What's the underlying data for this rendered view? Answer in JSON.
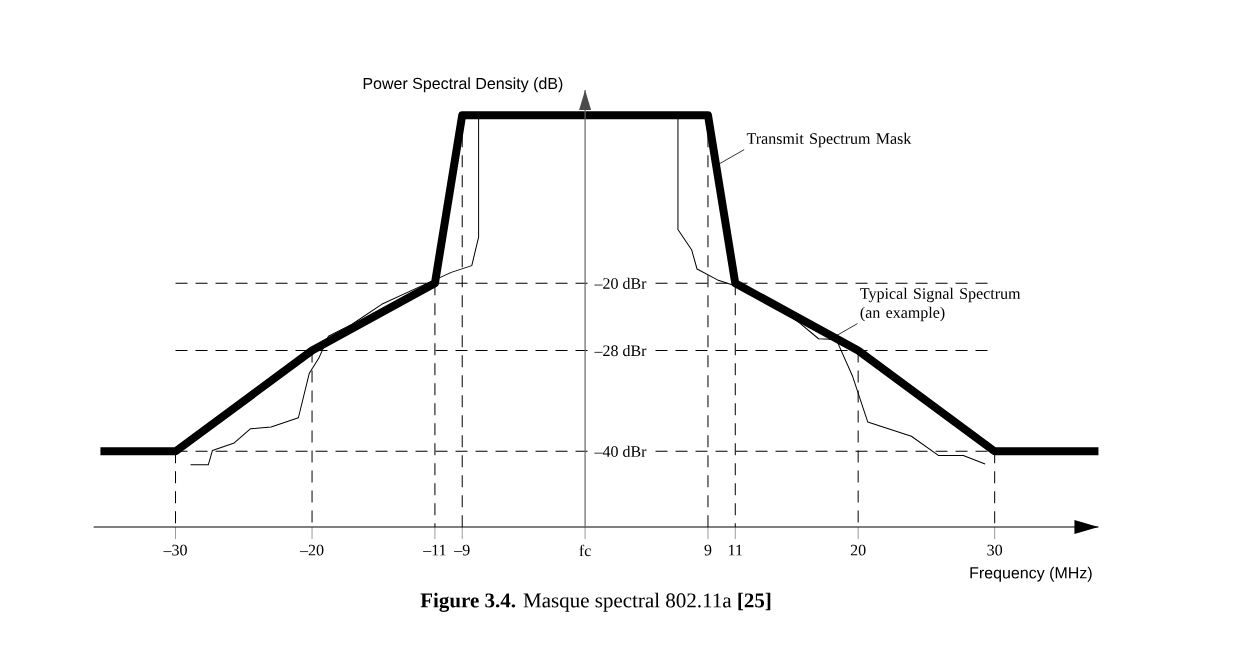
{
  "chart_data": {
    "type": "line",
    "xlabel": "Frequency (MHz)",
    "ylabel": "Power Spectral Density (dB)",
    "xlim": [
      -36,
      37.6
    ],
    "ylim": [
      -49,
      3
    ],
    "yticks": [
      {
        "value": -20,
        "label": "–20 dBr"
      },
      {
        "value": -28,
        "label": "–28 dBr"
      },
      {
        "value": -40,
        "label": "–40 dBr"
      }
    ],
    "xticks": [
      {
        "value": -30,
        "label": "–30"
      },
      {
        "value": -20,
        "label": "–20"
      },
      {
        "value": -11,
        "label": "–11"
      },
      {
        "value": -9,
        "label": "–9"
      },
      {
        "value": 0,
        "label": "fc"
      },
      9,
      11,
      20,
      30
    ],
    "series": [
      {
        "color": "#000000",
        "x": [
          -35.5,
          -30,
          -20,
          -11,
          -9,
          9,
          11,
          20,
          30,
          37.6
        ],
        "values": [
          -40,
          -40,
          -28,
          -20,
          0,
          0,
          -20,
          -28,
          -40,
          -40
        ]
      },
      {
        "color": "#000000",
        "x": [
          -28.9,
          -27.6,
          -27.3,
          -25.7,
          -24.5,
          -23,
          -21,
          -20.2,
          -19.5,
          -18.8,
          -17.1,
          -14.9,
          -11.7,
          -9.8,
          -8.3,
          -7.8,
          -7.8,
          6.8,
          6.8,
          7.8,
          8.2,
          9.7,
          11.2,
          14.1,
          15.7,
          17.1,
          18.4,
          19.6,
          20.7,
          23.9,
          25.9,
          27.7,
          29.3
        ],
        "values": [
          -41.6,
          -41.6,
          -39.9,
          -39,
          -37.3,
          -37.1,
          -36,
          -30.7,
          -28.9,
          -26.3,
          -24.9,
          -22.5,
          -20.1,
          -18.7,
          -17.9,
          -14.5,
          0,
          0,
          -13.6,
          -16,
          -18.3,
          -19.6,
          -20.4,
          -22.8,
          -24.7,
          -26.6,
          -26.7,
          -31.1,
          -36.5,
          -38.2,
          -40.5,
          -40.5,
          -41.5
        ]
      }
    ],
    "ref_lines": [
      {
        "axis": "y",
        "value": -20,
        "line_style": "dashed"
      },
      {
        "axis": "y",
        "value": -28,
        "line_style": "dashed"
      },
      {
        "axis": "y",
        "value": -40,
        "line_style": "dashed"
      },
      {
        "axis": "x",
        "value": -30,
        "line_style": "dashed"
      },
      {
        "axis": "x",
        "value": -20,
        "line_style": "dashed"
      },
      {
        "axis": "x",
        "value": -11,
        "line_style": "dashed"
      },
      {
        "axis": "x",
        "value": -9,
        "line_style": "dashed"
      },
      {
        "axis": "x",
        "value": 9,
        "line_style": "dashed"
      },
      {
        "axis": "x",
        "value": 11,
        "line_style": "dashed"
      },
      {
        "axis": "x",
        "value": 20,
        "line_style": "dashed"
      },
      {
        "axis": "x",
        "value": 30,
        "line_style": "dashed"
      }
    ],
    "annotations": [
      {
        "text": "Transmit Spectrum Mask",
        "x": 9.6,
        "y": -6
      },
      {
        "text": "Typical Signal Spectrum (an example)",
        "x": 17.9,
        "y": -26.7
      },
      "**Figure 3.4.** Masque spectral 802.11a **[25]**"
    ]
  }
}
